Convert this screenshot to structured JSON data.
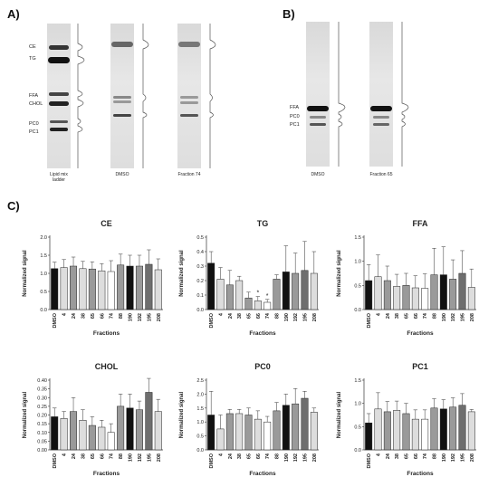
{
  "panels": {
    "a": "A)",
    "b": "B)",
    "c": "C)"
  },
  "panel_a": {
    "band_labels": [
      "CE",
      "TG",
      "FFA",
      "CHOL",
      "PC0",
      "PC1"
    ],
    "lane_labels": [
      "Lipid mix ladder",
      "DMSO",
      "Fraction 74"
    ]
  },
  "panel_b": {
    "band_labels": [
      "FFA",
      "PC0",
      "PC1"
    ],
    "lane_labels": [
      "DMSO",
      "Fraction 65"
    ]
  },
  "chart_data": [
    {
      "type": "bar",
      "title": "CE",
      "xlabel": "Fractions",
      "ylabel": "Normalized signal",
      "ylim": [
        0,
        2.0
      ],
      "yticks": [
        "0.0",
        "0.5",
        "1.0",
        "1.5",
        "2.0"
      ],
      "categories": [
        "DMSO",
        "4",
        "24",
        "38",
        "65",
        "66",
        "74",
        "88",
        "190",
        "192",
        "195",
        "208"
      ],
      "values": [
        1.13,
        1.16,
        1.2,
        1.13,
        1.12,
        1.07,
        1.05,
        1.23,
        1.2,
        1.2,
        1.25,
        1.1
      ],
      "errors": [
        0.18,
        0.22,
        0.25,
        0.2,
        0.2,
        0.2,
        0.3,
        0.3,
        0.3,
        0.3,
        0.4,
        0.3
      ],
      "colors": [
        "black",
        "lightgray",
        "gray",
        "lightgray",
        "gray",
        "lightgray",
        "white",
        "gray",
        "black",
        "gray",
        "darkgray",
        "lightgray"
      ]
    },
    {
      "type": "bar",
      "title": "TG",
      "xlabel": "Fractions",
      "ylabel": "Normalized signal",
      "ylim": [
        0,
        0.5
      ],
      "yticks": [
        "0.0",
        "0.1",
        "0.2",
        "0.3",
        "0.4",
        "0.5"
      ],
      "categories": [
        "DMSO",
        "4",
        "24",
        "38",
        "65",
        "66",
        "74",
        "88",
        "190",
        "192",
        "195",
        "208"
      ],
      "values": [
        0.32,
        0.21,
        0.17,
        0.2,
        0.08,
        0.06,
        0.05,
        0.21,
        0.26,
        0.25,
        0.27,
        0.25
      ],
      "errors": [
        0.08,
        0.08,
        0.1,
        0.03,
        0.04,
        0.03,
        0.02,
        0.03,
        0.18,
        0.14,
        0.2,
        0.15
      ],
      "colors": [
        "black",
        "lightgray",
        "gray",
        "lightgray",
        "gray",
        "lightgray",
        "white",
        "gray",
        "black",
        "gray",
        "darkgray",
        "lightgray"
      ],
      "annotations": [
        {
          "category": "66",
          "text": "*"
        },
        {
          "category": "74",
          "text": "*"
        }
      ]
    },
    {
      "type": "bar",
      "title": "FFA",
      "xlabel": "Fractions",
      "ylabel": "Normalized signal",
      "ylim": [
        0,
        1.5
      ],
      "yticks": [
        "0.0",
        "0.5",
        "1.0",
        "1.5"
      ],
      "categories": [
        "DMSO",
        "4",
        "24",
        "38",
        "65",
        "66",
        "74",
        "88",
        "190",
        "192",
        "195",
        "208"
      ],
      "values": [
        0.6,
        0.68,
        0.6,
        0.48,
        0.5,
        0.45,
        0.44,
        0.72,
        0.72,
        0.63,
        0.75,
        0.46
      ],
      "errors": [
        0.33,
        0.45,
        0.3,
        0.25,
        0.25,
        0.25,
        0.3,
        0.55,
        0.58,
        0.4,
        0.47,
        0.38
      ],
      "colors": [
        "black",
        "lightgray",
        "gray",
        "lightgray",
        "gray",
        "lightgray",
        "white",
        "gray",
        "black",
        "gray",
        "darkgray",
        "lightgray"
      ]
    },
    {
      "type": "bar",
      "title": "CHOL",
      "xlabel": "Fractions",
      "ylabel": "Normalized signal",
      "ylim": [
        0,
        0.4
      ],
      "yticks": [
        "0.00",
        "0.05",
        "0.10",
        "0.15",
        "0.20",
        "0.25",
        "0.30",
        "0.35",
        "0.40"
      ],
      "categories": [
        "DMSO",
        "4",
        "24",
        "38",
        "65",
        "66",
        "74",
        "88",
        "190",
        "192",
        "195",
        "208"
      ],
      "values": [
        0.19,
        0.18,
        0.22,
        0.17,
        0.14,
        0.13,
        0.1,
        0.25,
        0.24,
        0.23,
        0.33,
        0.22
      ],
      "errors": [
        0.05,
        0.04,
        0.08,
        0.06,
        0.05,
        0.04,
        0.05,
        0.07,
        0.08,
        0.05,
        0.08,
        0.07
      ],
      "colors": [
        "black",
        "lightgray",
        "gray",
        "lightgray",
        "gray",
        "lightgray",
        "white",
        "gray",
        "black",
        "gray",
        "darkgray",
        "lightgray"
      ]
    },
    {
      "type": "bar",
      "title": "PC0",
      "xlabel": "Fractions",
      "ylabel": "Normalized signal",
      "ylim": [
        0,
        2.5
      ],
      "yticks": [
        "0.0",
        "0.5",
        "1.0",
        "1.5",
        "2.0",
        "2.5"
      ],
      "categories": [
        "DMSO",
        "4",
        "24",
        "38",
        "65",
        "66",
        "74",
        "88",
        "190",
        "192",
        "195",
        "208"
      ],
      "values": [
        1.25,
        0.75,
        1.3,
        1.3,
        1.25,
        1.1,
        1.0,
        1.4,
        1.6,
        1.65,
        1.85,
        1.35
      ],
      "errors": [
        0.85,
        0.5,
        0.15,
        0.15,
        0.25,
        0.3,
        0.2,
        0.3,
        0.4,
        0.55,
        0.25,
        0.15
      ],
      "colors": [
        "black",
        "lightgray",
        "gray",
        "lightgray",
        "gray",
        "lightgray",
        "white",
        "gray",
        "black",
        "gray",
        "darkgray",
        "lightgray"
      ]
    },
    {
      "type": "bar",
      "title": "PC1",
      "xlabel": "Fractions",
      "ylabel": "Normalized signal",
      "ylim": [
        0,
        1.5
      ],
      "yticks": [
        "0.0",
        "0.5",
        "1.0",
        "1.5"
      ],
      "categories": [
        "DMSO",
        "4",
        "24",
        "38",
        "65",
        "66",
        "74",
        "88",
        "190",
        "192",
        "195",
        "208"
      ],
      "values": [
        0.58,
        0.88,
        0.82,
        0.85,
        0.78,
        0.66,
        0.66,
        0.9,
        0.88,
        0.92,
        0.96,
        0.82
      ],
      "errors": [
        0.2,
        0.35,
        0.22,
        0.2,
        0.22,
        0.2,
        0.2,
        0.2,
        0.2,
        0.2,
        0.25,
        0.05
      ],
      "colors": [
        "black",
        "lightgray",
        "gray",
        "lightgray",
        "gray",
        "lightgray",
        "white",
        "gray",
        "black",
        "gray",
        "darkgray",
        "lightgray"
      ]
    }
  ]
}
